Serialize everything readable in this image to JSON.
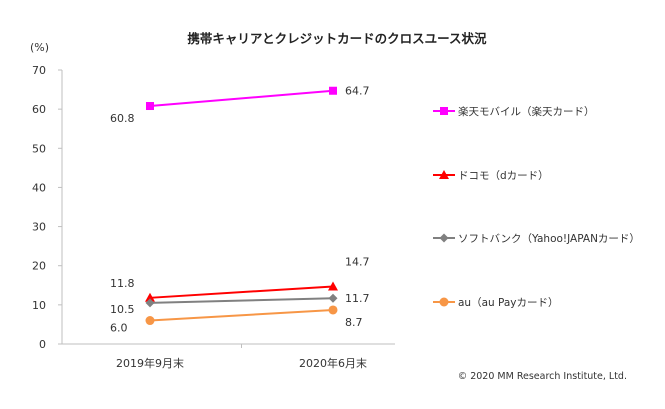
{
  "chart_data": {
    "type": "line",
    "title": "携帯キャリアとクレジットカードのクロスユース状況",
    "ylabel": "(%)",
    "ylim": [
      0,
      70
    ],
    "yticks": [
      0,
      10,
      20,
      30,
      40,
      50,
      60,
      70
    ],
    "categories": [
      "2019年9月末",
      "2020年6月末"
    ],
    "series": [
      {
        "name": "楽天モバイル（楽天カード）",
        "values": [
          60.8,
          64.7
        ],
        "value_labels": [
          "60.8",
          "64.7"
        ],
        "color": "#ff00ff",
        "marker": "square"
      },
      {
        "name": "ドコモ（dカード）",
        "values": [
          11.8,
          14.7
        ],
        "value_labels": [
          "11.8",
          "14.7"
        ],
        "color": "#ff0000",
        "marker": "triangle"
      },
      {
        "name": "ソフトバンク（Yahoo!JAPANカード）",
        "values": [
          10.5,
          11.7
        ],
        "value_labels": [
          "10.5",
          "11.7"
        ],
        "color": "#808080",
        "marker": "diamond"
      },
      {
        "name": "au（au Payカード）",
        "values": [
          6.0,
          8.7
        ],
        "value_labels": [
          "6.0",
          "8.7"
        ],
        "color": "#f79646",
        "marker": "circle"
      }
    ],
    "grid": false,
    "legend_position": "right"
  },
  "footer": {
    "copyright": "© 2020  MM Research Institute, Ltd."
  }
}
